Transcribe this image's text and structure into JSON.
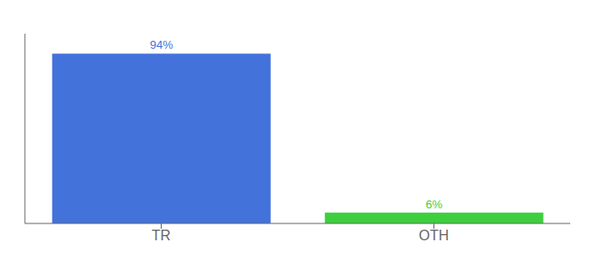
{
  "chart_data": {
    "type": "bar",
    "categories": [
      "TR",
      "OTH"
    ],
    "values": [
      94,
      6
    ],
    "value_labels": [
      "94%",
      "6%"
    ],
    "colors": [
      "#4472DB",
      "#3ECF3E"
    ],
    "ylim": [
      0,
      105
    ],
    "data_labels": true,
    "tick_labels": "x",
    "grid": false
  }
}
